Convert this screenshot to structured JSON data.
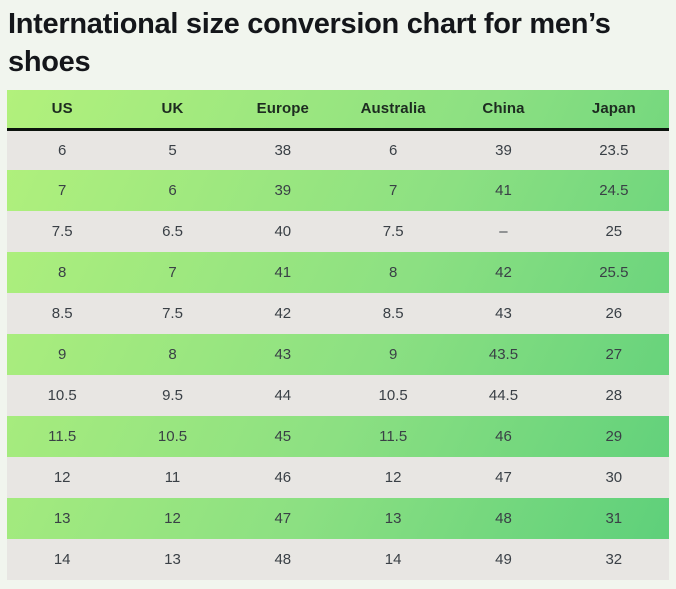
{
  "title": "International size conversion chart for men’s shoes",
  "table": {
    "columns": [
      "US",
      "UK",
      "Europe",
      "Australia",
      "China",
      "Japan"
    ],
    "rows": [
      [
        "6",
        "5",
        "38",
        "6",
        "39",
        "23.5"
      ],
      [
        "7",
        "6",
        "39",
        "7",
        "41",
        "24.5"
      ],
      [
        "7.5",
        "6.5",
        "40",
        "7.5",
        "–",
        "25"
      ],
      [
        "8",
        "7",
        "41",
        "8",
        "42",
        "25.5"
      ],
      [
        "8.5",
        "7.5",
        "42",
        "8.5",
        "43",
        "26"
      ],
      [
        "9",
        "8",
        "43",
        "9",
        "43.5",
        "27"
      ],
      [
        "10.5",
        "9.5",
        "44",
        "10.5",
        "44.5",
        "28"
      ],
      [
        "11.5",
        "10.5",
        "45",
        "11.5",
        "46",
        "29"
      ],
      [
        "12",
        "11",
        "46",
        "12",
        "47",
        "30"
      ],
      [
        "13",
        "12",
        "47",
        "13",
        "48",
        "31"
      ],
      [
        "14",
        "13",
        "48",
        "14",
        "49",
        "32"
      ]
    ]
  },
  "colors": {
    "page_background": "#f1f5ee",
    "gradient_start": "#b2f17c",
    "gradient_mid": "#8ce082",
    "gradient_end": "#5ccf7a",
    "gray_row": "#e8e6e3",
    "header_border": "#0c130d",
    "title_text": "#14161a",
    "cell_text": "#3a4046",
    "header_text": "#1d2b20"
  }
}
